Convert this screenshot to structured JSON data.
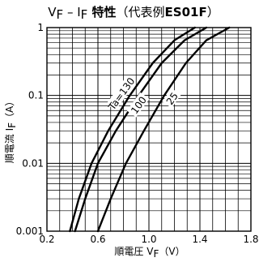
{
  "chart_data": {
    "type": "line",
    "title": {
      "prefix": "V",
      "prefix_sub": "F",
      "dash": " – I",
      "mid_sub": "F",
      "bold_label": " 特性",
      "paren_text": "（代表例",
      "model": "ES01F",
      "close": "）"
    },
    "xlabel": {
      "main": "順電圧 V",
      "sub": "F",
      "unit": "（V）"
    },
    "ylabel": {
      "main": "順電流 I",
      "sub": "F",
      "unit": "（A）"
    },
    "x_ticks": [
      "0.2",
      "0.6",
      "1.0",
      "1.4",
      "1.8"
    ],
    "y_ticks": [
      "0.001",
      "0.01",
      "0.1",
      "1"
    ],
    "xlim": [
      0.2,
      1.8
    ],
    "ylim": [
      0.001,
      1
    ],
    "y_scale": "log",
    "grid": true,
    "series": [
      {
        "name": "Ta=130",
        "color": "#000000",
        "points": [
          [
            0.38,
            0.001
          ],
          [
            0.45,
            0.003
          ],
          [
            0.55,
            0.01
          ],
          [
            0.68,
            0.03
          ],
          [
            0.85,
            0.1
          ],
          [
            1.03,
            0.3
          ],
          [
            1.2,
            0.65
          ],
          [
            1.36,
            1.0
          ]
        ]
      },
      {
        "name": "100",
        "color": "#000000",
        "points": [
          [
            0.42,
            0.001
          ],
          [
            0.5,
            0.003
          ],
          [
            0.6,
            0.01
          ],
          [
            0.74,
            0.03
          ],
          [
            0.92,
            0.1
          ],
          [
            1.1,
            0.3
          ],
          [
            1.28,
            0.65
          ],
          [
            1.45,
            1.0
          ]
        ]
      },
      {
        "name": "25",
        "color": "#000000",
        "points": [
          [
            0.6,
            0.001
          ],
          [
            0.7,
            0.003
          ],
          [
            0.82,
            0.01
          ],
          [
            0.96,
            0.03
          ],
          [
            1.12,
            0.1
          ],
          [
            1.29,
            0.3
          ],
          [
            1.45,
            0.65
          ],
          [
            1.63,
            1.0
          ]
        ]
      }
    ]
  }
}
